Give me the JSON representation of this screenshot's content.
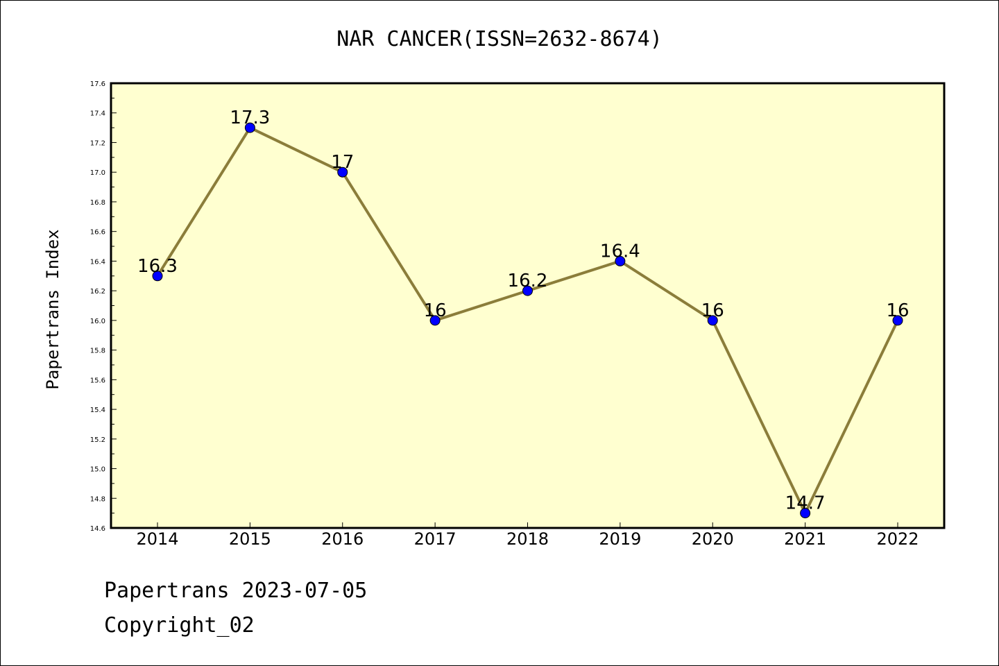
{
  "chart_data": {
    "type": "line",
    "title": "NAR CANCER(ISSN=2632-8674)",
    "ylabel": "Papertrans Index",
    "xlabel": "",
    "categories": [
      "2014",
      "2015",
      "2016",
      "2017",
      "2018",
      "2019",
      "2020",
      "2021",
      "2022"
    ],
    "series": [
      {
        "values": [
          16.3,
          17.3,
          17.0,
          16.0,
          16.2,
          16.4,
          16.0,
          14.7,
          16.0
        ],
        "labels": [
          "16.3",
          "17.3",
          "17",
          "16",
          "16.2",
          "16.4",
          "16",
          "14.7",
          "16"
        ]
      }
    ],
    "ylim": [
      14.6,
      17.6
    ],
    "yticks": [
      "14.6",
      "14.8",
      "15.0",
      "15.2",
      "15.4",
      "15.6",
      "15.8",
      "16.0",
      "16.2",
      "16.4",
      "16.6",
      "16.8",
      "17.0",
      "17.2",
      "17.4",
      "17.6"
    ],
    "grid": false,
    "legend": "none",
    "colors": {
      "plot_background": "#ffffd0",
      "line": "#8b7d3a",
      "marker": "#0000ff"
    }
  },
  "footer": {
    "line1": "Papertrans 2023-07-05",
    "line2": "Copyright_02"
  }
}
